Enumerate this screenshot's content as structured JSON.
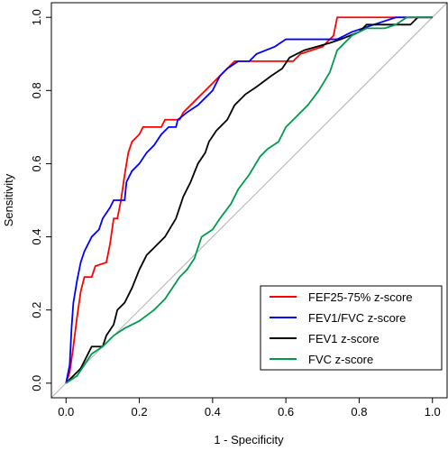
{
  "chart_data": {
    "type": "line",
    "xlabel": "1 - Specificity",
    "ylabel": "Sensitivity",
    "xlim": [
      -0.04,
      1.04
    ],
    "ylim": [
      -0.04,
      1.04
    ],
    "xticks": [
      {
        "value": 0,
        "label": "0.0"
      },
      0.2,
      0.4,
      0.6,
      0.8,
      {
        "value": 1,
        "label": "1.0"
      }
    ],
    "yticks": [
      {
        "value": 0,
        "label": "0.0"
      },
      0.2,
      0.4,
      0.6,
      0.8,
      {
        "value": 1,
        "label": "1.0"
      }
    ],
    "reference_diagonal": true,
    "legend": "bottom-right",
    "series": [
      {
        "name": "FEF25-75% z-score",
        "color": "#ff0000",
        "x": [
          0,
          0.01,
          0.02,
          0.03,
          0.04,
          0.05,
          0.07,
          0.08,
          0.11,
          0.12,
          0.13,
          0.14,
          0.15,
          0.16,
          0.17,
          0.18,
          0.2,
          0.21,
          0.26,
          0.27,
          0.31,
          0.32,
          0.34,
          0.36,
          0.38,
          0.4,
          0.42,
          0.44,
          0.46,
          0.57,
          0.62,
          0.64,
          0.7,
          0.73,
          0.74,
          1
        ],
        "values": [
          0,
          0.03,
          0.1,
          0.18,
          0.25,
          0.29,
          0.29,
          0.32,
          0.33,
          0.38,
          0.45,
          0.45,
          0.5,
          0.57,
          0.63,
          0.66,
          0.68,
          0.7,
          0.7,
          0.72,
          0.72,
          0.74,
          0.76,
          0.78,
          0.8,
          0.82,
          0.84,
          0.86,
          0.88,
          0.88,
          0.88,
          0.9,
          0.92,
          0.95,
          1,
          1
        ]
      },
      {
        "name": "FEV1/FVC z-score",
        "color": "#0000ff",
        "x": [
          0,
          0.01,
          0.015,
          0.02,
          0.03,
          0.04,
          0.05,
          0.06,
          0.07,
          0.09,
          0.1,
          0.12,
          0.13,
          0.16,
          0.165,
          0.18,
          0.2,
          0.22,
          0.24,
          0.26,
          0.28,
          0.3,
          0.305,
          0.33,
          0.36,
          0.38,
          0.4,
          0.42,
          0.44,
          0.47,
          0.5,
          0.52,
          0.57,
          0.6,
          0.74,
          0.78,
          0.84,
          0.9,
          1
        ],
        "values": [
          0,
          0.05,
          0.15,
          0.22,
          0.28,
          0.33,
          0.36,
          0.38,
          0.4,
          0.42,
          0.45,
          0.48,
          0.5,
          0.5,
          0.55,
          0.58,
          0.6,
          0.63,
          0.65,
          0.68,
          0.7,
          0.7,
          0.72,
          0.74,
          0.76,
          0.78,
          0.8,
          0.84,
          0.86,
          0.88,
          0.88,
          0.9,
          0.92,
          0.94,
          0.94,
          0.96,
          0.98,
          1,
          1
        ]
      },
      {
        "name": "FEV1 z-score",
        "color": "#000000",
        "x": [
          0,
          0.02,
          0.04,
          0.06,
          0.07,
          0.1,
          0.11,
          0.13,
          0.14,
          0.16,
          0.18,
          0.2,
          0.22,
          0.24,
          0.27,
          0.3,
          0.32,
          0.34,
          0.36,
          0.38,
          0.39,
          0.41,
          0.44,
          0.46,
          0.49,
          0.52,
          0.56,
          0.59,
          0.61,
          0.65,
          0.72,
          0.75,
          0.8,
          0.82,
          0.94,
          0.96,
          1
        ],
        "values": [
          0,
          0.02,
          0.04,
          0.08,
          0.1,
          0.1,
          0.13,
          0.16,
          0.2,
          0.22,
          0.26,
          0.31,
          0.35,
          0.37,
          0.4,
          0.45,
          0.51,
          0.55,
          0.6,
          0.63,
          0.66,
          0.69,
          0.72,
          0.76,
          0.79,
          0.81,
          0.84,
          0.86,
          0.89,
          0.91,
          0.93,
          0.94,
          0.96,
          0.98,
          0.98,
          1,
          1
        ]
      },
      {
        "name": "FVC z-score",
        "color": "#009a4e",
        "x": [
          0,
          0.03,
          0.05,
          0.07,
          0.1,
          0.13,
          0.16,
          0.2,
          0.24,
          0.27,
          0.29,
          0.31,
          0.33,
          0.35,
          0.36,
          0.37,
          0.4,
          0.42,
          0.45,
          0.47,
          0.5,
          0.53,
          0.55,
          0.58,
          0.6,
          0.63,
          0.66,
          0.69,
          0.72,
          0.74,
          0.78,
          0.82,
          0.87,
          0.9,
          0.93,
          1
        ],
        "values": [
          0,
          0.02,
          0.05,
          0.08,
          0.1,
          0.13,
          0.15,
          0.17,
          0.2,
          0.23,
          0.26,
          0.29,
          0.31,
          0.34,
          0.37,
          0.4,
          0.42,
          0.45,
          0.49,
          0.53,
          0.57,
          0.62,
          0.64,
          0.66,
          0.7,
          0.73,
          0.76,
          0.8,
          0.85,
          0.91,
          0.95,
          0.97,
          0.97,
          0.98,
          1,
          1
        ]
      }
    ]
  }
}
